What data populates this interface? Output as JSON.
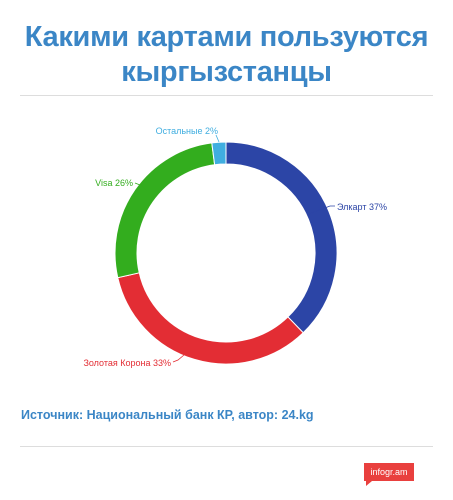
{
  "title": "Какими картами пользуются кыргызстанцы",
  "source": "Источник: Национальный банк КР, автор: 24.kg",
  "brand": "infogr.am",
  "chart_data": {
    "type": "pie",
    "categories": [
      "Элкарт",
      "Золотая Корона",
      "Visa",
      "Остальные"
    ],
    "values": [
      37,
      33,
      26,
      2
    ],
    "labels": [
      "Элкарт 37%",
      "Золотая Корона 33%",
      "Visa 26%",
      "Остальные 2%"
    ],
    "colors": [
      "#2c45a6",
      "#e32d34",
      "#33ad1e",
      "#40aee0"
    ],
    "unit": "%",
    "legend": "none"
  }
}
